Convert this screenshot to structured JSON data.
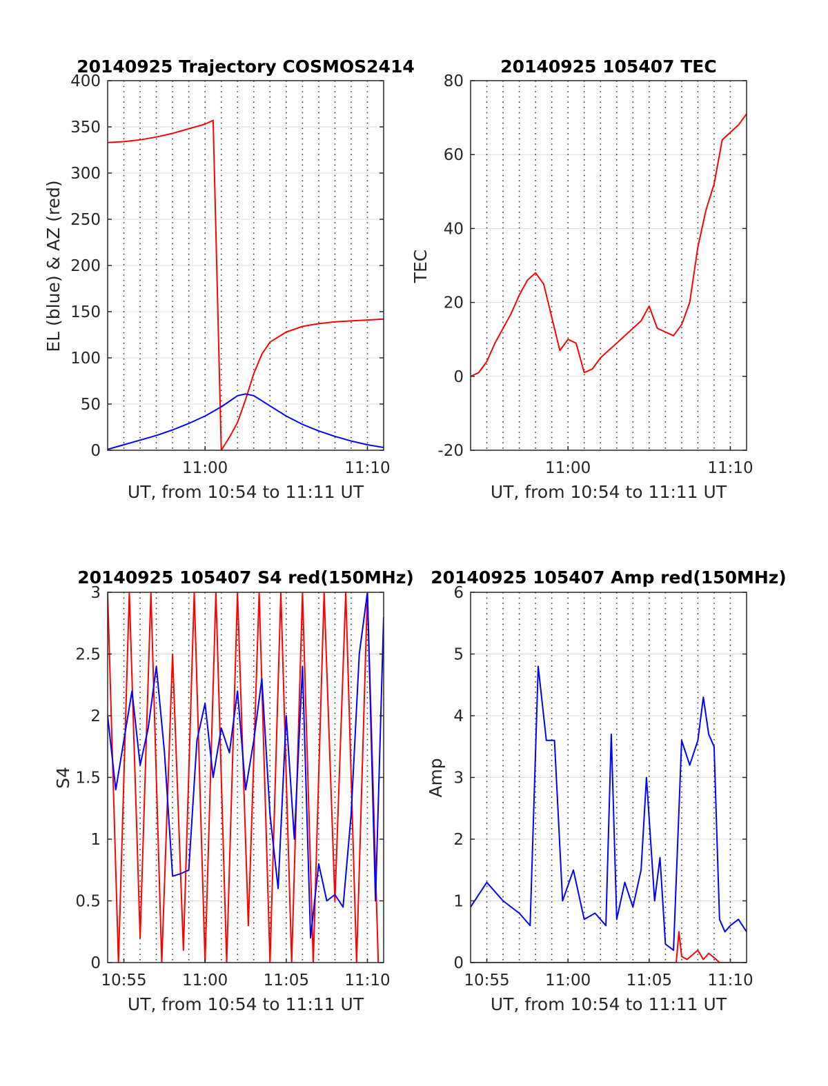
{
  "figure": {
    "background": "#ffffff",
    "colors": {
      "blue": "#0000ff",
      "red": "#ff0000",
      "grid": "#dddddd",
      "minor_grid": "#333333"
    }
  },
  "chart_data": [
    {
      "type": "line",
      "title": "20140925 Trajectory COSMOS2414",
      "xlabel": "UT, from 10:54 to 11:11 UT",
      "ylabel": "EL (blue) & AZ (red)",
      "xlim": [
        "10:54",
        "11:11"
      ],
      "ylim": [
        0,
        400
      ],
      "xticks": [
        "11:00",
        "11:10"
      ],
      "yticks": [
        "0",
        "50",
        "100",
        "150",
        "200",
        "250",
        "300",
        "350",
        "400"
      ],
      "grid": true,
      "minor_grid_x": true,
      "series": [
        {
          "color": "#ff0000",
          "x": [
            "10:54",
            "10:55",
            "10:56",
            "10:57",
            "10:58",
            "10:59",
            "11:00",
            "11:00:30",
            "11:01",
            "11:01:30",
            "11:02",
            "11:02:30",
            "11:03",
            "11:03:30",
            "11:04",
            "11:05",
            "11:06",
            "11:07",
            "11:08",
            "11:09",
            "11:10",
            "11:11"
          ],
          "y": [
            333,
            334,
            336,
            339,
            343,
            348,
            353,
            357,
            0,
            14,
            30,
            55,
            83,
            104,
            117,
            128,
            134,
            137,
            139,
            140,
            141,
            142
          ]
        },
        {
          "color": "#0000ff",
          "x": [
            "10:54",
            "10:55",
            "10:56",
            "10:57",
            "10:58",
            "10:59",
            "11:00",
            "11:01",
            "11:01:30",
            "11:02",
            "11:02:30",
            "11:03",
            "11:04",
            "11:05",
            "11:06",
            "11:07",
            "11:08",
            "11:09",
            "11:10",
            "11:11"
          ],
          "y": [
            1,
            6,
            11,
            16,
            22,
            29,
            37,
            47,
            53,
            59,
            61,
            59,
            48,
            37,
            28,
            21,
            15,
            10,
            6,
            3
          ]
        }
      ]
    },
    {
      "type": "line",
      "title": "20140925 105407 TEC",
      "xlabel": "UT, from 10:54 to 11:11 UT",
      "ylabel": "TEC",
      "xlim": [
        "10:54",
        "11:11"
      ],
      "ylim": [
        -20,
        80
      ],
      "xticks": [
        "11:00",
        "11:10"
      ],
      "yticks": [
        "-20",
        "0",
        "20",
        "40",
        "60",
        "80"
      ],
      "grid": true,
      "minor_grid_x": true,
      "series": [
        {
          "color": "#ff0000",
          "x": [
            "10:54",
            "10:54:30",
            "10:55",
            "10:55:30",
            "10:56",
            "10:56:30",
            "10:57",
            "10:57:30",
            "10:58",
            "10:58:30",
            "10:59",
            "10:59:30",
            "11:00",
            "11:00:30",
            "11:01",
            "11:01:30",
            "11:02",
            "11:02:30",
            "11:03",
            "11:03:30",
            "11:04",
            "11:04:30",
            "11:05",
            "11:05:30",
            "11:06",
            "11:06:30",
            "11:07",
            "11:07:30",
            "11:08",
            "11:08:30",
            "11:09",
            "11:09:30",
            "11:10",
            "11:10:30",
            "11:11"
          ],
          "y": [
            0,
            1,
            4,
            9,
            13,
            17,
            22,
            26,
            28,
            25,
            16,
            7,
            10,
            9,
            1,
            2,
            5,
            7,
            9,
            11,
            13,
            15,
            19,
            13,
            12,
            11,
            14,
            20,
            35,
            45,
            52,
            64,
            66,
            68,
            71
          ]
        }
      ]
    },
    {
      "type": "line",
      "title": "20140925 105407 S4 red(150MHz)",
      "xlabel": "UT, from 10:54 to 11:11 UT",
      "ylabel": "S4",
      "xlim": [
        "10:54",
        "11:11"
      ],
      "ylim": [
        0,
        3
      ],
      "xticks": [
        "10:55",
        "11:00",
        "11:05",
        "11:10"
      ],
      "yticks": [
        "0",
        "0.5",
        "1",
        "1.5",
        "2",
        "2.5",
        "3"
      ],
      "grid": true,
      "minor_grid_x": true,
      "series": [
        {
          "color": "#ff0000",
          "x": [
            "10:54",
            "10:54:40",
            "10:55:20",
            "10:56",
            "10:56:40",
            "10:57:20",
            "10:58",
            "10:58:40",
            "10:59:20",
            "11:00",
            "11:00:40",
            "11:01:20",
            "11:02",
            "11:02:40",
            "11:03:20",
            "11:04",
            "11:04:40",
            "11:05:20",
            "11:06",
            "11:06:40",
            "11:07:20",
            "11:08",
            "11:08:40",
            "11:09:20",
            "11:10",
            "11:10:40"
          ],
          "y": [
            3,
            0,
            3,
            0.2,
            3,
            0,
            2.5,
            0.1,
            3,
            0,
            3,
            0,
            3,
            0.3,
            3,
            0,
            3,
            0,
            3,
            0,
            3,
            0.5,
            3,
            0,
            3,
            0
          ]
        },
        {
          "color": "#0000ff",
          "x": [
            "10:54",
            "10:54:30",
            "10:55",
            "10:55:30",
            "10:56",
            "10:56:30",
            "10:57",
            "10:57:30",
            "10:58",
            "10:58:30",
            "10:59",
            "10:59:30",
            "11:00",
            "11:00:30",
            "11:01",
            "11:01:30",
            "11:02",
            "11:02:30",
            "11:03",
            "11:03:30",
            "11:04",
            "11:04:30",
            "11:05",
            "11:05:30",
            "11:06",
            "11:06:30",
            "11:07",
            "11:07:30",
            "11:08",
            "11:08:30",
            "11:09",
            "11:09:30",
            "11:10",
            "11:10:30",
            "11:11"
          ],
          "y": [
            2.0,
            1.4,
            1.8,
            2.2,
            1.6,
            1.9,
            2.4,
            1.7,
            0.7,
            0.72,
            0.75,
            1.8,
            2.1,
            1.5,
            1.9,
            1.7,
            2.2,
            1.4,
            1.8,
            2.3,
            1.2,
            0.6,
            2.0,
            1.0,
            2.4,
            0.2,
            0.8,
            0.5,
            0.55,
            0.45,
            1.2,
            2.5,
            3.0,
            0.5,
            2.8
          ]
        }
      ]
    },
    {
      "type": "line",
      "title": "20140925 105407 Amp red(150MHz)",
      "xlabel": "UT, from 10:54 to 11:11 UT",
      "ylabel": "Amp",
      "xlim": [
        "10:54",
        "11:11"
      ],
      "ylim": [
        0,
        6
      ],
      "xticks": [
        "10:55",
        "11:00",
        "11:05",
        "11:10"
      ],
      "yticks": [
        "0",
        "1",
        "2",
        "3",
        "4",
        "5",
        "6"
      ],
      "grid": true,
      "minor_grid_x": true,
      "series": [
        {
          "color": "#ff0000",
          "x": [
            "10:54",
            "11:06:40",
            "11:06:50",
            "11:07",
            "11:07:20",
            "11:08",
            "11:08:20",
            "11:08:40",
            "11:09",
            "11:09:20",
            "11:11"
          ],
          "y": [
            0,
            0,
            0.5,
            0.1,
            0.05,
            0.2,
            0.05,
            0.15,
            0.08,
            0,
            0
          ]
        },
        {
          "color": "#0000ff",
          "x": [
            "10:54",
            "10:55",
            "10:56",
            "10:57",
            "10:57:40",
            "10:58:10",
            "10:58:40",
            "10:59:10",
            "10:59:40",
            "11:00:20",
            "11:01",
            "11:01:40",
            "11:02:20",
            "11:02:40",
            "11:03",
            "11:03:30",
            "11:04",
            "11:04:30",
            "11:04:50",
            "11:05:20",
            "11:05:40",
            "11:06",
            "11:06:30",
            "11:07",
            "11:07:30",
            "11:08",
            "11:08:20",
            "11:08:40",
            "11:09",
            "11:09:20",
            "11:09:40",
            "11:10",
            "11:10:30",
            "11:11"
          ],
          "y": [
            0.9,
            1.3,
            1.0,
            0.8,
            0.6,
            4.8,
            3.6,
            3.6,
            1.0,
            1.5,
            0.7,
            0.8,
            0.6,
            3.7,
            0.7,
            1.3,
            0.9,
            1.5,
            3.0,
            1.0,
            1.7,
            0.3,
            0.2,
            3.6,
            3.2,
            3.6,
            4.3,
            3.7,
            3.5,
            0.7,
            0.5,
            0.6,
            0.7,
            0.5
          ]
        }
      ]
    }
  ]
}
